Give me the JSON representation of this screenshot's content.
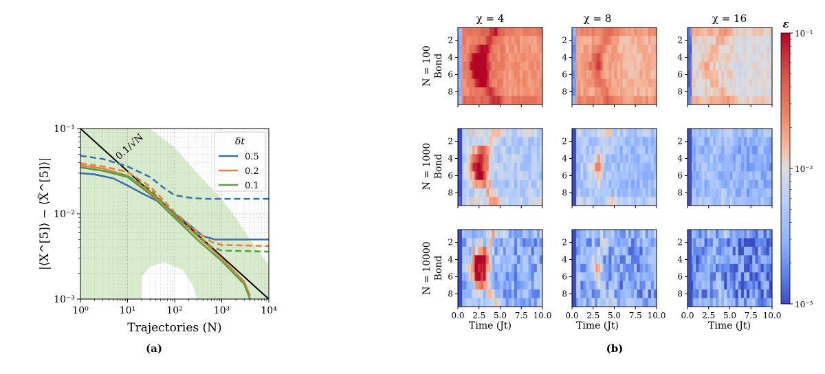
{
  "chart_data": [
    {
      "id": "a",
      "type": "line",
      "caption": "(a)",
      "xlabel": "Trajectories (N)",
      "ylabel": "|⟨X^[5]⟩ − ⟨X̃^[5]⟩|",
      "xscale": "log",
      "yscale": "log",
      "xlim": [
        1,
        10000
      ],
      "ylim": [
        0.001,
        0.1
      ],
      "x_ticks": [
        1,
        10,
        100,
        1000,
        10000
      ],
      "x_tick_labels": [
        "10⁰",
        "10¹",
        "10²",
        "10³",
        "10⁴"
      ],
      "y_ticks": [
        0.001,
        0.01,
        0.1
      ],
      "y_tick_labels": [
        "10⁻³",
        "10⁻²",
        "10⁻¹"
      ],
      "grid": true,
      "legend": {
        "title": "δt",
        "position": "top-right",
        "entries": [
          "0.5",
          "0.2",
          "0.1"
        ]
      },
      "reference_line": {
        "label": "0.1/√N",
        "color": "#000000",
        "x": [
          1,
          10000
        ],
        "y": [
          0.1,
          0.001
        ]
      },
      "shaded_band": {
        "color": "#d4e9c8",
        "x": [
          1,
          3,
          10,
          30,
          100,
          300,
          1000,
          2000,
          4000,
          10000
        ],
        "upper": [
          0.1,
          0.1,
          0.1,
          0.1,
          0.06,
          0.03,
          0.015,
          0.009,
          0.005,
          0.0025
        ],
        "lower": [
          0.001,
          0.001,
          0.001,
          0.001,
          0.001,
          0.001,
          0.001,
          0.001,
          0.001,
          0.001
        ],
        "gap": {
          "x": [
            20,
            30,
            60,
            150,
            250,
            300
          ],
          "upper": [
            0.0018,
            0.0024,
            0.0027,
            0.0022,
            0.0014,
            0.001
          ]
        }
      },
      "series": [
        {
          "name": "0.5",
          "color": "#3a70b0",
          "style": "solid",
          "x": [
            1,
            2,
            5,
            10,
            20,
            50,
            100,
            200,
            400,
            700,
            1000,
            10000
          ],
          "y": [
            0.03,
            0.029,
            0.026,
            0.0215,
            0.0175,
            0.0135,
            0.01,
            0.0075,
            0.0055,
            0.005,
            0.005,
            0.005
          ]
        },
        {
          "name": "0.5",
          "color": "#3a70b0",
          "style": "dashed",
          "x": [
            1,
            3,
            10,
            30,
            60,
            100,
            200,
            400,
            1000,
            10000
          ],
          "y": [
            0.048,
            0.044,
            0.036,
            0.027,
            0.02,
            0.0165,
            0.0155,
            0.015,
            0.015,
            0.015
          ]
        },
        {
          "name": "0.2",
          "color": "#e97f3c",
          "style": "solid",
          "x": [
            1,
            3,
            10,
            30,
            100,
            300,
            1000,
            3000,
            4000
          ],
          "y": [
            0.037,
            0.034,
            0.028,
            0.018,
            0.0095,
            0.0055,
            0.003,
            0.0016,
            0.0011
          ]
        },
        {
          "name": "0.2",
          "color": "#e97f3c",
          "style": "dashed",
          "x": [
            1,
            3,
            10,
            30,
            100,
            300,
            600,
            1000,
            10000
          ],
          "y": [
            0.039,
            0.036,
            0.031,
            0.021,
            0.0105,
            0.0062,
            0.0047,
            0.0043,
            0.0042
          ]
        },
        {
          "name": "0.1",
          "color": "#5c9e45",
          "style": "solid",
          "x": [
            1,
            3,
            10,
            30,
            100,
            300,
            1000,
            3000,
            4000
          ],
          "y": [
            0.035,
            0.032,
            0.027,
            0.017,
            0.009,
            0.005,
            0.0028,
            0.0015,
            0.001
          ]
        },
        {
          "name": "0.1",
          "color": "#5c9e45",
          "style": "dashed",
          "x": [
            1,
            3,
            10,
            30,
            100,
            300,
            600,
            1000,
            10000
          ],
          "y": [
            0.035,
            0.032,
            0.028,
            0.0195,
            0.0098,
            0.0057,
            0.0041,
            0.0037,
            0.0036
          ]
        }
      ]
    },
    {
      "id": "b",
      "type": "heatmap",
      "caption": "(b)",
      "column_titles": [
        "χ = 4",
        "χ = 8",
        "χ = 16"
      ],
      "row_titles": [
        "N = 100",
        "N = 1000",
        "N = 10000"
      ],
      "ylabel": "Bond",
      "xlabel": "Time (Jt)",
      "xlim": [
        0,
        10
      ],
      "x_ticks": [
        0,
        2.5,
        5,
        7.5,
        10
      ],
      "x_tick_labels": [
        "0.0",
        "2.5",
        "5.0",
        "7.5",
        "10.0"
      ],
      "y_ticks": [
        2,
        4,
        6,
        8
      ],
      "y_tick_labels": [
        "2",
        "4",
        "6",
        "8"
      ],
      "bonds": 9,
      "colorbar": {
        "label": "ε",
        "scale": "log",
        "range": [
          0.001,
          0.1
        ],
        "tick_labels": [
          "10⁻¹",
          "10⁻²",
          "10⁻³"
        ],
        "colormap": "coolwarm"
      },
      "peak_time": 2.5,
      "peak_bonds": [
        4,
        5,
        6
      ],
      "peak_value_by_chi": {
        "4": 0.1,
        "8": 0.045,
        "16": null
      },
      "base_level": [
        [
          0.025,
          0.018,
          0.011
        ],
        [
          0.006,
          0.0045,
          0.0035
        ],
        [
          0.0035,
          0.003,
          0.0022
        ]
      ]
    }
  ]
}
